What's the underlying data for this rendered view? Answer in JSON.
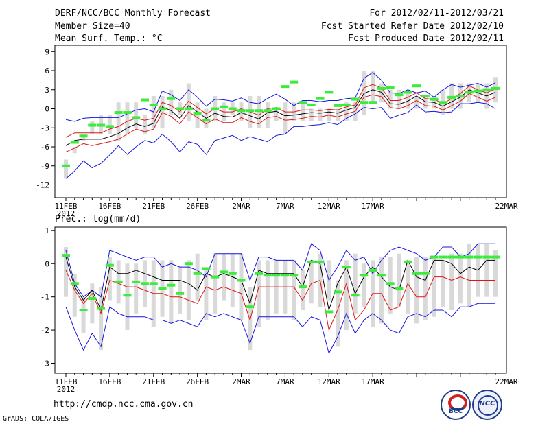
{
  "header": {
    "title": "DERF/NCC/BCC Monthly Forecast",
    "member_size": "Member Size=40",
    "variable": "Mean Surf. Temp.: °C",
    "period": "For 2012/02/11-2012/03/21",
    "fcst_started": "Fcst Started Refer Date 2012/02/10",
    "fcst_produced": "Fcst Produced Date 2012/02/11"
  },
  "footer": {
    "url": "http://cmdp.ncc.cma.gov.cn",
    "grads": "GrADS: COLA/IGES",
    "logo_bcc": "BCC",
    "logo_ncc": "NCC"
  },
  "colors": {
    "box": "#d9d9d9",
    "mean": "#000000",
    "spread": "#e01414",
    "envelope": "#1414e0",
    "observed": "#3cec3c"
  },
  "chart_data": [
    {
      "type": "line",
      "title": "Mean Surf. Temp.: °C",
      "xlabel": "",
      "ylabel": "",
      "x_ticks": [
        "11FEB",
        "16FEB",
        "21FEB",
        "26FEB",
        "2MAR",
        "7MAR",
        "12MAR",
        "17MAR",
        "22MAR"
      ],
      "x_sub": "2012",
      "y_ticks": [
        9,
        6,
        3,
        0,
        -3,
        -6,
        -9,
        -12
      ],
      "ylim": [
        -14,
        10
      ],
      "grid": false,
      "series": [
        {
          "name": "box_high",
          "values": [
            -8,
            -6,
            -4,
            -2,
            -1,
            -1,
            1,
            1,
            1,
            -1,
            2,
            2,
            3,
            1,
            4,
            1,
            0,
            2,
            1,
            1,
            1,
            2,
            2,
            1,
            0,
            1,
            1,
            1,
            0,
            0,
            0,
            0,
            1,
            1,
            6,
            6,
            4,
            3,
            3,
            3,
            2,
            2,
            2,
            3,
            4,
            4,
            4,
            4,
            4,
            5
          ]
        },
        {
          "name": "box_low",
          "values": [
            -11,
            -7,
            -5,
            -4,
            -4,
            -4,
            -5,
            -4,
            -3,
            -4,
            -3,
            -3,
            -1,
            -1,
            -2,
            -3,
            -3,
            -2,
            -2,
            -1,
            -2,
            -3,
            -3,
            -3,
            -2,
            -4,
            -2,
            -2,
            -2,
            -2,
            -2,
            -2,
            -2,
            -2,
            -1,
            1,
            1,
            0,
            0,
            0,
            0,
            0,
            0,
            -1,
            0,
            0,
            1,
            1,
            0,
            1
          ]
        },
        {
          "name": "upper_env",
          "values": [
            -1.7,
            -2.0,
            -1.5,
            -1.4,
            -1.4,
            -1.4,
            -1.4,
            -0.8,
            -0.2,
            0,
            -0.5,
            2.8,
            2.2,
            1.3,
            3.0,
            1.8,
            0.4,
            1.5,
            1.4,
            1.2,
            1.7,
            1.0,
            0.8,
            1.6,
            2.3,
            1.5,
            0.5,
            1.3,
            1.3,
            1.1,
            1.3,
            1.3,
            1.6,
            1.7,
            4.8,
            5.7,
            4.5,
            2.5,
            2.4,
            3.0,
            2.5,
            2.8,
            1.8,
            3.0,
            3.8,
            3.4,
            3.7,
            4.0,
            3.4,
            4.1
          ]
        },
        {
          "name": "spread_high",
          "values": [
            -4.5,
            -3.8,
            -3.8,
            -3.8,
            -3.8,
            -3.2,
            -2.8,
            -2.0,
            -1.5,
            -1.8,
            -1.5,
            1.0,
            0.5,
            -0.5,
            1.2,
            0.2,
            -0.8,
            0,
            -0.5,
            -0.5,
            0,
            -0.5,
            -1.0,
            0,
            0.2,
            -0.5,
            -0.5,
            -0.2,
            -0.2,
            -0.3,
            -0.1,
            -0.2,
            0.3,
            0.6,
            3.3,
            3.8,
            3.3,
            1.3,
            1.3,
            1.8,
            2.5,
            1.6,
            1.5,
            0.8,
            1.6,
            2.4,
            3.6,
            3.0,
            2.5,
            3.2
          ]
        },
        {
          "name": "mean",
          "values": [
            -5.8,
            -5.0,
            -4.8,
            -4.8,
            -4.8,
            -4.4,
            -3.9,
            -3.0,
            -2.4,
            -2.8,
            -2.3,
            0.3,
            -0.3,
            -1.5,
            0.5,
            -0.5,
            -1.5,
            -0.7,
            -1.2,
            -1.3,
            -0.6,
            -1.1,
            -1.6,
            -0.6,
            -0.4,
            -1.1,
            -1.0,
            -0.8,
            -0.6,
            -0.7,
            -0.5,
            -0.7,
            -0.2,
            0.2,
            2.4,
            3.0,
            2.6,
            0.8,
            0.7,
            1.2,
            2.0,
            1.1,
            1.0,
            0.4,
            1.1,
            1.8,
            3.0,
            2.5,
            2.0,
            2.6
          ]
        },
        {
          "name": "spread_low",
          "values": [
            -6.8,
            -6.2,
            -5.5,
            -5.8,
            -5.5,
            -5.2,
            -4.8,
            -4.0,
            -3.2,
            -3.6,
            -3.2,
            -0.6,
            -1.2,
            -2.4,
            -0.5,
            -1.4,
            -2.4,
            -1.6,
            -2.2,
            -2.2,
            -1.4,
            -2.0,
            -2.4,
            -1.4,
            -1.2,
            -1.8,
            -1.7,
            -1.5,
            -1.2,
            -1.3,
            -1.0,
            -1.3,
            -0.8,
            -0.4,
            1.8,
            2.2,
            1.9,
            0.2,
            0,
            0.5,
            1.3,
            0.5,
            0.4,
            -0.2,
            0.5,
            1.2,
            2.4,
            1.8,
            1.2,
            1.8
          ]
        },
        {
          "name": "lower_env",
          "values": [
            -11.0,
            -9.8,
            -8.2,
            -9.3,
            -8.6,
            -7.3,
            -5.8,
            -7.2,
            -6.0,
            -5.0,
            -5.4,
            -4.0,
            -5.2,
            -6.8,
            -5.2,
            -5.6,
            -7.2,
            -5.0,
            -4.6,
            -4.2,
            -5.0,
            -4.4,
            -4.8,
            -5.2,
            -4.2,
            -4.0,
            -2.8,
            -2.8,
            -2.6,
            -2.5,
            -2.2,
            -2.5,
            -1.5,
            -0.8,
            0.2,
            0,
            0.2,
            -1.5,
            -1.0,
            -0.6,
            0.6,
            -0.5,
            -0.4,
            -0.6,
            -0.5,
            0.8,
            0.8,
            1.0,
            0.8,
            0
          ]
        },
        {
          "name": "observed",
          "values": [
            -9,
            -5.3,
            -4.3,
            -2.6,
            -2.6,
            -2.8,
            -0.6,
            -0.6,
            -1.4,
            1.4,
            0.6,
            0,
            1.6,
            0,
            0,
            -0.7,
            -1.8,
            0,
            0.3,
            0,
            -0.3,
            -0.3,
            -0.3,
            -0.3,
            0,
            3.5,
            4.2,
            1.0,
            0.6,
            1.6,
            2.6,
            0.5,
            0.6,
            1.5,
            1.0,
            1.0,
            3.2,
            3.3,
            2.2,
            2.6,
            3.6,
            2.0,
            1.5,
            1.0,
            1.8,
            2.0,
            2.6,
            2.8,
            3.0,
            3.2
          ]
        }
      ]
    },
    {
      "type": "line",
      "title": "Prec.: log(mm/d)",
      "xlabel": "",
      "ylabel": "",
      "x_ticks": [
        "11FEB",
        "16FEB",
        "21FEB",
        "26FEB",
        "2MAR",
        "7MAR",
        "12MAR",
        "17MAR",
        "22MAR"
      ],
      "x_sub": "2012",
      "y_ticks": [
        1,
        0,
        -1,
        -2,
        -3
      ],
      "ylim": [
        -3.3,
        1.1
      ],
      "grid": false,
      "series": [
        {
          "name": "box_high",
          "values": [
            0.5,
            -0.3,
            -1.0,
            -0.6,
            -0.7,
            0.2,
            0.1,
            0,
            0,
            0.1,
            0.1,
            0.1,
            0.1,
            -0.1,
            0.1,
            0.3,
            -0.2,
            0.3,
            0.3,
            0.3,
            0.3,
            -0.7,
            0.1,
            0.1,
            0.1,
            0.1,
            0.1,
            -0.2,
            0.1,
            0.3,
            0.1,
            -0.5,
            0.1,
            0.3,
            0,
            0.1,
            0.2,
            0.2,
            0.3,
            0.1,
            0.2,
            0.2,
            0.2,
            0.1,
            0.3,
            0.3,
            0.6,
            0.6,
            0.6,
            0.4
          ]
        },
        {
          "name": "box_low",
          "values": [
            -1.0,
            -1.6,
            -2.1,
            -1.8,
            -2.6,
            -1.1,
            -1.2,
            -2.0,
            -1.5,
            -1.3,
            -1.9,
            -1.6,
            -1.8,
            -1.5,
            -1.7,
            -1.1,
            -1.7,
            -1.5,
            -1.1,
            -1.3,
            -1.7,
            -2.6,
            -1.9,
            -1.7,
            -1.5,
            -1.5,
            -1.7,
            -1.4,
            -1.2,
            -1.3,
            -1.1,
            -2.5,
            -2.0,
            -1.5,
            -1.3,
            -1.9,
            -1.8,
            -1.5,
            -1.3,
            -1.5,
            -1.8,
            -1.7,
            -1.6,
            -1.3,
            -1.4,
            -1.2,
            -1.3,
            -1.0,
            -1.0,
            -1.0
          ]
        },
        {
          "name": "upper_env",
          "values": [
            0.4,
            -0.6,
            -1.0,
            -0.8,
            -1.0,
            0.4,
            0.3,
            0.2,
            0.1,
            0.2,
            0.2,
            -0.1,
            0,
            -0.1,
            -0.1,
            -0.2,
            -0.4,
            0.3,
            0.3,
            0.3,
            0.3,
            -0.5,
            0.2,
            0.2,
            0.1,
            0.1,
            0.1,
            -0.2,
            0.6,
            0.4,
            -0.5,
            -0.1,
            0.4,
            0.1,
            0.2,
            -0.3,
            0.1,
            0.4,
            0.5,
            0.4,
            0.3,
            0.1,
            0.2,
            0.5,
            0.5,
            0.2,
            0.3,
            0.6,
            0.6,
            0.6
          ]
        },
        {
          "name": "mean",
          "values": [
            0.2,
            -0.7,
            -1.1,
            -0.8,
            -1.4,
            -0.1,
            -0.3,
            -0.3,
            -0.2,
            -0.3,
            -0.4,
            -0.5,
            -0.5,
            -0.5,
            -0.6,
            -0.8,
            -0.3,
            -0.4,
            -0.3,
            -0.4,
            -0.5,
            -1.2,
            -0.2,
            -0.3,
            -0.3,
            -0.3,
            -0.3,
            -0.7,
            0.1,
            0,
            -1.4,
            -0.6,
            -0.1,
            -0.9,
            -0.4,
            -0.1,
            -0.4,
            -0.7,
            -0.8,
            0.1,
            -0.4,
            -0.5,
            0.1,
            0.1,
            0,
            -0.3,
            -0.1,
            -0.2,
            0.1,
            0.1
          ]
        },
        {
          "name": "spread_low",
          "values": [
            -0.2,
            -0.8,
            -1.2,
            -0.9,
            -1.5,
            -0.5,
            -0.6,
            -0.7,
            -0.7,
            -0.8,
            -0.9,
            -0.9,
            -1.0,
            -1.0,
            -1.1,
            -1.2,
            -0.7,
            -0.8,
            -0.7,
            -0.8,
            -0.9,
            -1.7,
            -0.7,
            -0.7,
            -0.7,
            -0.7,
            -0.7,
            -1.1,
            -0.6,
            -0.5,
            -2.0,
            -1.4,
            -0.6,
            -1.7,
            -1.4,
            -0.9,
            -0.9,
            -1.4,
            -1.3,
            -0.6,
            -1.0,
            -1.0,
            -0.4,
            -0.4,
            -0.5,
            -0.4,
            -0.5,
            -0.5,
            -0.5,
            -0.5
          ]
        },
        {
          "name": "lower_env",
          "values": [
            -1.3,
            -2.0,
            -2.6,
            -2.1,
            -2.5,
            -1.3,
            -1.5,
            -1.6,
            -1.6,
            -1.6,
            -1.7,
            -1.7,
            -1.8,
            -1.7,
            -1.8,
            -1.9,
            -1.5,
            -1.6,
            -1.5,
            -1.6,
            -1.7,
            -2.4,
            -1.6,
            -1.6,
            -1.6,
            -1.6,
            -1.6,
            -1.9,
            -1.6,
            -1.7,
            -2.7,
            -2.2,
            -1.5,
            -2.1,
            -1.7,
            -1.5,
            -1.7,
            -2.0,
            -2.1,
            -1.6,
            -1.5,
            -1.6,
            -1.4,
            -1.4,
            -1.6,
            -1.3,
            -1.3,
            -1.2,
            -1.2,
            -1.2
          ]
        },
        {
          "name": "observed",
          "values": [
            0.25,
            -0.6,
            -1.4,
            -1.05,
            -1.35,
            -0.05,
            -0.55,
            -0.95,
            -0.55,
            -0.6,
            -0.6,
            -0.75,
            -0.65,
            -0.9,
            0,
            -0.3,
            -0.15,
            -0.4,
            -0.25,
            -0.3,
            -0.5,
            -1.3,
            -0.3,
            -0.35,
            -0.35,
            -0.35,
            -0.35,
            -0.7,
            0.05,
            0.05,
            -1.45,
            -0.85,
            -0.1,
            -0.95,
            -0.35,
            -0.2,
            -0.35,
            -0.6,
            -0.75,
            0.05,
            -0.3,
            -0.3,
            0.2,
            0.2,
            0.2,
            0.2,
            0.2,
            0.2,
            0.2,
            0.2
          ]
        }
      ]
    }
  ]
}
